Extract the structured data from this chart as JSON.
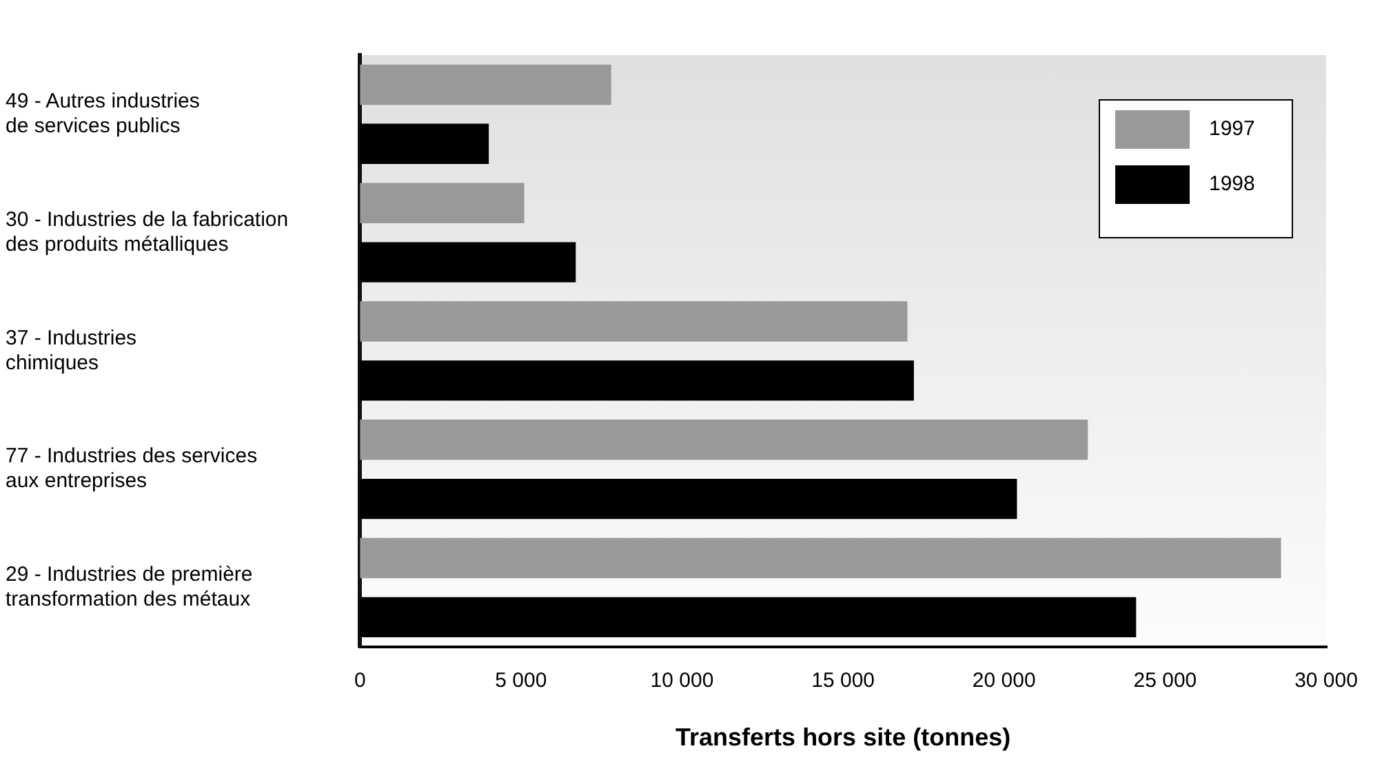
{
  "chart_data": {
    "type": "bar",
    "orientation": "horizontal",
    "xlabel": "Transferts hors site (tonnes)",
    "categories": [
      "49 - Autres industries\nde services publics",
      "30 - Industries de la fabrication\ndes produits métalliques",
      "37 - Industries\nchimiques",
      "77 - Industries des services\naux entreprises",
      "29 - Industries de première\ntransformation des métaux"
    ],
    "series": [
      {
        "name": "1997",
        "color": "#999999",
        "values": [
          7800,
          5100,
          17000,
          22600,
          28600
        ]
      },
      {
        "name": "1998",
        "color": "#000000",
        "values": [
          4000,
          6700,
          17200,
          20400,
          24100
        ]
      }
    ],
    "xlim": [
      0,
      30000
    ],
    "xticks": [
      0,
      {
        "value": 5000,
        "label": "5 000"
      },
      {
        "value": 10000,
        "label": "10 000"
      },
      {
        "value": 15000,
        "label": "15 000"
      },
      {
        "value": 20000,
        "label": "20 000"
      },
      {
        "value": 25000,
        "label": "25 000"
      },
      {
        "value": 30000,
        "label": "30 000"
      }
    ],
    "grid": false,
    "legend": "top right"
  }
}
